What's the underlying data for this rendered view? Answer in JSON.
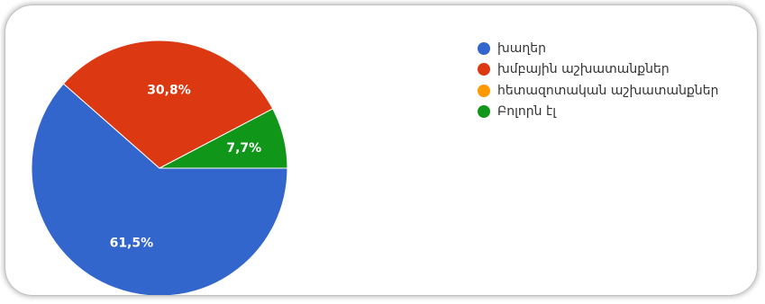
{
  "chart_data": {
    "type": "pie",
    "title": "",
    "legend_position": "right",
    "slices": [
      {
        "name": "խաղեր",
        "value": 61.5,
        "label": "61,5%",
        "color": "#3366cc"
      },
      {
        "name": "խմբային աշխատանքներ",
        "value": 30.8,
        "label": "30,8%",
        "color": "#dc3912"
      },
      {
        "name": "հետազոտական աշխատանքներ",
        "value": 0,
        "label": "",
        "color": "#ff9900"
      },
      {
        "name": "Բոլորն էլ",
        "value": 7.7,
        "label": "7,7%",
        "color": "#109618"
      }
    ]
  }
}
